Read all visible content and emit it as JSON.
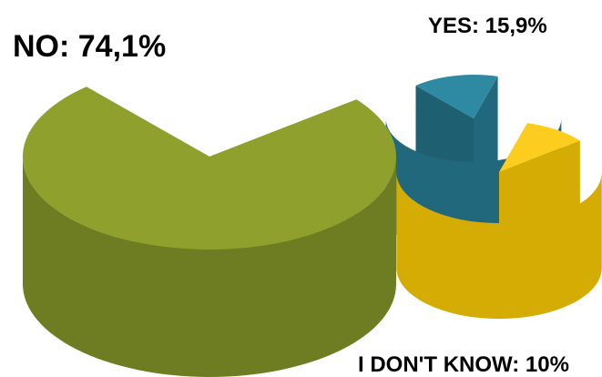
{
  "chart_data": {
    "type": "pie",
    "style": "3d-exploded",
    "title": "",
    "legend": "none",
    "slices": [
      {
        "label": "NO",
        "value": 74.1,
        "display": "NO: 74,1%",
        "color": "#8FA02C",
        "side_color": "#6E7C22"
      },
      {
        "label": "YES",
        "value": 15.9,
        "display": "YES: 15,9%",
        "color": "#2E89A3",
        "side_color": "#21687C"
      },
      {
        "label": "I DON'T KNOW",
        "value": 10,
        "display": "I DON'T KNOW: 10%",
        "color": "#FCCC1E",
        "side_color": "#D4AC04"
      }
    ]
  }
}
